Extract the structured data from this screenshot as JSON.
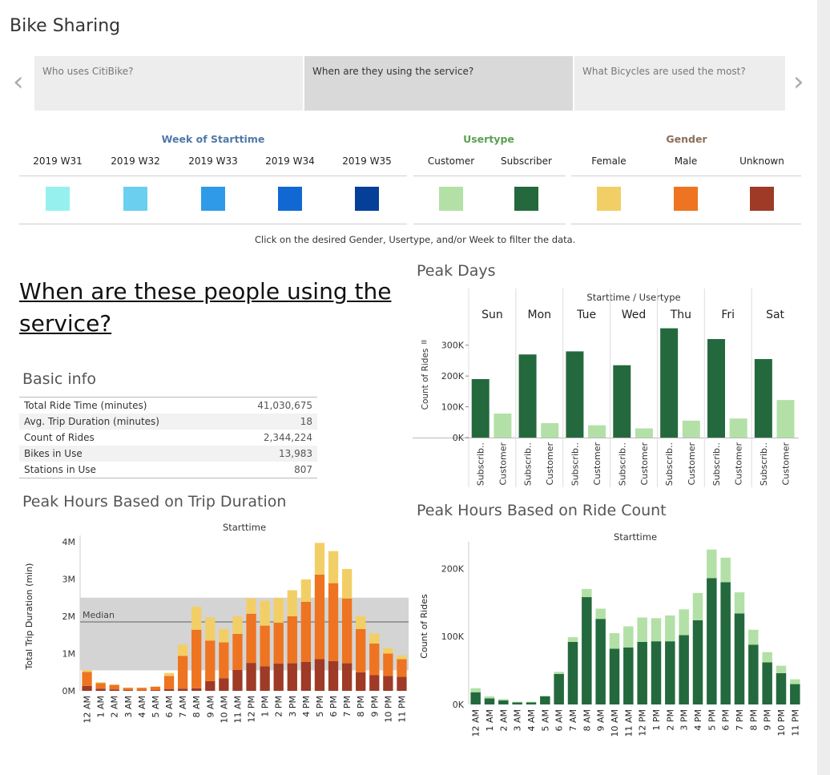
{
  "app_title": "Bike Sharing",
  "story": {
    "tabs": [
      {
        "label": "Who uses CitiBike?",
        "active": false
      },
      {
        "label": "When are they using the service?",
        "active": true
      },
      {
        "label": "What Bicycles are used the most?",
        "active": false
      }
    ],
    "prev_icon": "chevron-left-icon",
    "next_icon": "chevron-right-icon"
  },
  "filters": {
    "week": {
      "title": "Week of Starttime",
      "title_color": "#4e79a7",
      "items": [
        {
          "label": "2019 W31",
          "color": "#96f1ee"
        },
        {
          "label": "2019 W32",
          "color": "#6bcff0"
        },
        {
          "label": "2019 W33",
          "color": "#2f9be8"
        },
        {
          "label": "2019 W34",
          "color": "#1168d3"
        },
        {
          "label": "2019 W35",
          "color": "#063f97"
        }
      ]
    },
    "usertype": {
      "title": "Usertype",
      "title_color": "#59a14f",
      "items": [
        {
          "label": "Customer",
          "color": "#b3e0a6"
        },
        {
          "label": "Subscriber",
          "color": "#24693d"
        }
      ]
    },
    "gender": {
      "title": "Gender",
      "title_color": "#8c6d5a",
      "items": [
        {
          "label": "Female",
          "color": "#f2cf66"
        },
        {
          "label": "Male",
          "color": "#ee7421"
        },
        {
          "label": "Unknown",
          "color": "#9e3a26"
        }
      ]
    },
    "note": "Click on the desired Gender, Usertype, and/or Week to filter the data."
  },
  "headline": "When are these people using the service?",
  "basic_info": {
    "title": "Basic info",
    "rows": [
      {
        "label": "Total Ride Time (minutes)",
        "value": "41,030,675"
      },
      {
        "label": "Avg. Trip Duration (minutes)",
        "value": "18"
      },
      {
        "label": "Count of Rides",
        "value": "2,344,224"
      },
      {
        "label": "Bikes in Use",
        "value": "13,983"
      },
      {
        "label": "Stations in Use",
        "value": "807"
      }
    ]
  },
  "peak_days": {
    "title": "Peak Days",
    "header": "Starttime / Usertype",
    "ylabel": "Count of Rides",
    "yticks": [
      "0K",
      "100K",
      "200K",
      "300K"
    ],
    "sub_labels": [
      "Subscrib..",
      "Customer"
    ]
  },
  "trip_duration": {
    "title": "Peak Hours Based on Trip Duration",
    "header": "Starttime",
    "ylabel": "Total Trip Duration (min)",
    "yticks": [
      "0M",
      "1M",
      "2M",
      "3M",
      "4M"
    ],
    "median_label": "Median"
  },
  "ride_count": {
    "title": "Peak Hours Based on Ride Count",
    "header": "Starttime",
    "ylabel": "Count of Rides",
    "yticks": [
      "0K",
      "100K",
      "200K"
    ]
  },
  "chart_data": [
    {
      "type": "bar",
      "title": "Peak Days",
      "xlabel": "Starttime / Usertype",
      "ylabel": "Count of Rides",
      "categories": [
        "Sun",
        "Mon",
        "Tue",
        "Wed",
        "Thu",
        "Fri",
        "Sat"
      ],
      "series": [
        {
          "name": "Subscriber",
          "color": "#24693d",
          "values": [
            190000,
            270000,
            280000,
            235000,
            355000,
            320000,
            255000
          ]
        },
        {
          "name": "Customer",
          "color": "#b3e0a6",
          "values": [
            78000,
            47000,
            40000,
            30000,
            55000,
            62000,
            122000
          ]
        }
      ],
      "ylim": [
        0,
        380000
      ]
    },
    {
      "type": "bar",
      "stacked": true,
      "title": "Peak Hours Based on Trip Duration",
      "xlabel": "Starttime",
      "ylabel": "Total Trip Duration (min)",
      "categories": [
        "12 AM",
        "1 AM",
        "2 AM",
        "3 AM",
        "4 AM",
        "5 AM",
        "6 AM",
        "7 AM",
        "8 AM",
        "9 AM",
        "10 AM",
        "11 AM",
        "12 PM",
        "1 PM",
        "2 PM",
        "3 PM",
        "4 PM",
        "5 PM",
        "6 PM",
        "7 PM",
        "8 PM",
        "9 PM",
        "10 PM",
        "11 PM"
      ],
      "series": [
        {
          "name": "Unknown",
          "color": "#9e3a26",
          "values": [
            130000,
            60000,
            40000,
            20000,
            10000,
            20000,
            50000,
            60000,
            70000,
            260000,
            340000,
            560000,
            750000,
            660000,
            730000,
            740000,
            780000,
            850000,
            800000,
            740000,
            500000,
            420000,
            400000,
            380000
          ]
        },
        {
          "name": "Male",
          "color": "#ee7421",
          "values": [
            380000,
            150000,
            120000,
            60000,
            70000,
            90000,
            350000,
            880000,
            1570000,
            1090000,
            960000,
            970000,
            1320000,
            1090000,
            1100000,
            1260000,
            1610000,
            2270000,
            2090000,
            1740000,
            1160000,
            850000,
            600000,
            470000
          ]
        },
        {
          "name": "Female",
          "color": "#f2cf66",
          "values": [
            50000,
            20000,
            10000,
            10000,
            10000,
            10000,
            80000,
            300000,
            620000,
            620000,
            360000,
            470000,
            410000,
            670000,
            660000,
            700000,
            600000,
            850000,
            860000,
            790000,
            350000,
            270000,
            150000,
            100000
          ]
        }
      ],
      "median_value": 1850000,
      "ylim": [
        0,
        4000000
      ]
    },
    {
      "type": "bar",
      "stacked": true,
      "title": "Peak Hours Based on Ride Count",
      "xlabel": "Starttime",
      "ylabel": "Count of Rides",
      "categories": [
        "12 AM",
        "1 AM",
        "2 AM",
        "3 AM",
        "4 AM",
        "5 AM",
        "6 AM",
        "7 AM",
        "8 AM",
        "9 AM",
        "10 AM",
        "11 AM",
        "12 PM",
        "1 PM",
        "2 PM",
        "3 PM",
        "4 PM",
        "5 PM",
        "6 PM",
        "7 PM",
        "8 PM",
        "9 PM",
        "10 PM",
        "11 PM"
      ],
      "series": [
        {
          "name": "Subscriber",
          "color": "#24693d",
          "values": [
            18000,
            9000,
            6000,
            3000,
            3000,
            12000,
            45000,
            92000,
            158000,
            126000,
            82000,
            84000,
            92000,
            93000,
            93000,
            102000,
            124000,
            186000,
            180000,
            134000,
            88000,
            62000,
            46000,
            30000
          ]
        },
        {
          "name": "Customer",
          "color": "#b3e0a6",
          "values": [
            6000,
            3000,
            2000,
            1000,
            1000,
            1000,
            3000,
            7000,
            12000,
            15000,
            23000,
            31000,
            36000,
            34000,
            38000,
            38000,
            40000,
            42000,
            36000,
            31000,
            22000,
            15000,
            11000,
            7000
          ]
        }
      ],
      "ylim": [
        0,
        230000
      ]
    }
  ]
}
